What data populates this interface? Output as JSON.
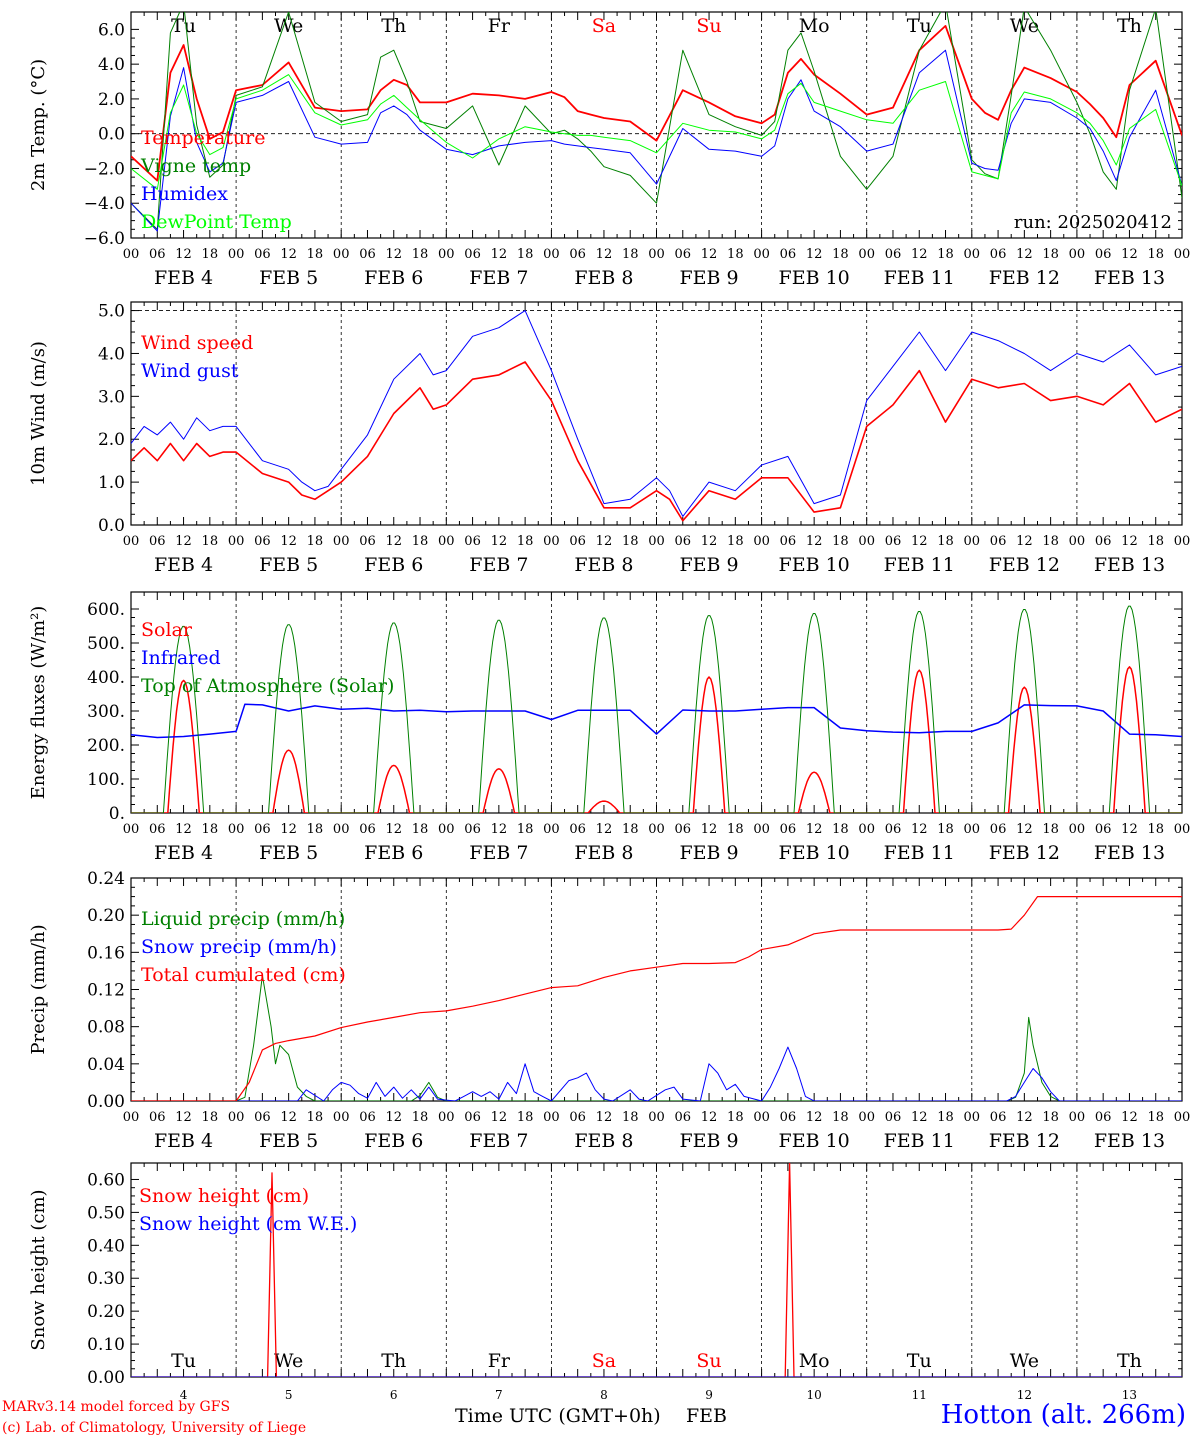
{
  "location": "Hotton (alt. 266m)",
  "credit": [
    "MARv3.14 model forced by GFS",
    "(c) Lab. of Climatology, University of Liege"
  ],
  "x_axis_title": "Time UTC (GMT+0h)",
  "month_label": "FEB",
  "run_label": "run: 2025020412",
  "days": [
    {
      "label": "FEB  4",
      "abbr": "Tu",
      "num": "4",
      "weekend": false
    },
    {
      "label": "FEB  5",
      "abbr": "We",
      "num": "5",
      "weekend": false
    },
    {
      "label": "FEB  6",
      "abbr": "Th",
      "num": "6",
      "weekend": false
    },
    {
      "label": "FEB  7",
      "abbr": "Fr",
      "num": "7",
      "weekend": false
    },
    {
      "label": "FEB  8",
      "abbr": "Sa",
      "num": "8",
      "weekend": true
    },
    {
      "label": "FEB  9",
      "abbr": "Su",
      "num": "9",
      "weekend": true
    },
    {
      "label": "FEB 10",
      "abbr": "Mo",
      "num": "10",
      "weekend": false
    },
    {
      "label": "FEB 11",
      "abbr": "Tu",
      "num": "11",
      "weekend": false
    },
    {
      "label": "FEB 12",
      "abbr": "We",
      "num": "12",
      "weekend": false
    },
    {
      "label": "FEB 13",
      "abbr": "Th",
      "num": "13",
      "weekend": false
    }
  ],
  "hour_ticks": [
    "00",
    "06",
    "12",
    "18"
  ],
  "colors": {
    "red": "#ff0000",
    "blue": "#0000ff",
    "green": "#008000",
    "lightgreen": "#00ff00",
    "weekend": "#ff0000"
  },
  "chart_data": [
    {
      "type": "line",
      "ylabel": "2m Temp. (°C)",
      "ylim": [
        -6,
        7
      ],
      "yticks": [
        -6,
        -4,
        -2,
        0,
        2,
        4,
        6
      ],
      "tick_labels": [
        "−6.0",
        "−4.0",
        "−2.0",
        "0.0",
        "2.0",
        "4.0",
        "6.0"
      ],
      "dashed_y": [
        0
      ],
      "x_hours": [
        0,
        6,
        9,
        12,
        15,
        18,
        21,
        24,
        30,
        36,
        42,
        48,
        54,
        57,
        60,
        63,
        66,
        72,
        78,
        84,
        90,
        96,
        99,
        102,
        105,
        108,
        114,
        120,
        126,
        132,
        138,
        144,
        147,
        150,
        153,
        156,
        162,
        168,
        174,
        180,
        186,
        192,
        195,
        198,
        201,
        204,
        210,
        216,
        219,
        222,
        225,
        228,
        234,
        240
      ],
      "series": [
        {
          "name": "Temperature",
          "color": "#ff0000",
          "width": 1.8,
          "values": [
            -1.3,
            -2.7,
            3.5,
            5.1,
            2.0,
            -0.3,
            0.1,
            2.5,
            2.8,
            4.1,
            1.5,
            1.3,
            1.4,
            2.5,
            3.1,
            2.8,
            1.8,
            1.8,
            2.3,
            2.2,
            2.0,
            2.4,
            2.1,
            1.3,
            1.1,
            0.9,
            0.7,
            -0.4,
            2.5,
            1.8,
            1.0,
            0.6,
            1.1,
            3.5,
            4.3,
            3.4,
            2.3,
            1.1,
            1.5,
            4.8,
            6.2,
            2.0,
            1.2,
            0.8,
            2.5,
            3.8,
            3.2,
            2.4,
            1.7,
            0.9,
            -0.2,
            2.8,
            4.2,
            -0.1
          ]
        },
        {
          "name": "Vigne temp",
          "color": "#008000",
          "width": 1.0,
          "values": [
            -4.0,
            -5.5,
            5.8,
            7.5,
            0.5,
            -2.5,
            -1.8,
            2.2,
            2.7,
            7.0,
            1.8,
            0.7,
            1.1,
            4.4,
            4.8,
            3.0,
            0.7,
            0.3,
            1.6,
            -1.8,
            1.6,
            0.0,
            0.2,
            -0.3,
            -1.0,
            -1.9,
            -2.4,
            -4.0,
            4.8,
            1.1,
            0.4,
            -0.1,
            0.7,
            4.8,
            5.8,
            3.6,
            -1.3,
            -3.2,
            -1.3,
            4.8,
            7.5,
            -1.5,
            -2.3,
            -2.6,
            2.2,
            7.3,
            4.8,
            1.8,
            0.0,
            -2.2,
            -3.2,
            2.5,
            7.2,
            -3.7
          ]
        },
        {
          "name": "Humidex",
          "color": "#0000ff",
          "width": 1.0,
          "values": [
            -4.0,
            -5.6,
            1.0,
            3.8,
            -0.5,
            -2.2,
            -1.7,
            1.8,
            2.2,
            3.0,
            -0.2,
            -0.6,
            -0.5,
            1.2,
            1.6,
            1.1,
            0.2,
            -0.9,
            -1.2,
            -0.7,
            -0.5,
            -0.4,
            -0.6,
            -0.7,
            -0.8,
            -0.9,
            -1.1,
            -2.9,
            0.3,
            -0.9,
            -1.0,
            -1.3,
            -0.7,
            2.0,
            3.1,
            1.3,
            0.4,
            -1.0,
            -0.6,
            3.5,
            4.8,
            -1.7,
            -2.0,
            -2.1,
            0.6,
            2.0,
            1.8,
            0.9,
            0.3,
            -1.0,
            -2.7,
            -0.2,
            2.5,
            -3.0
          ]
        },
        {
          "name": "DewPoint Temp",
          "color": "#00ff00",
          "width": 1.0,
          "values": [
            -2.0,
            -3.2,
            1.2,
            2.8,
            0.0,
            -1.2,
            -0.8,
            2.0,
            2.5,
            3.4,
            1.2,
            0.5,
            0.8,
            1.7,
            2.2,
            1.5,
            0.8,
            -0.5,
            -1.4,
            -0.3,
            0.4,
            0.1,
            0.0,
            -0.1,
            -0.1,
            -0.2,
            -0.4,
            -1.1,
            0.6,
            0.2,
            0.1,
            -0.3,
            0.2,
            2.3,
            2.9,
            1.8,
            1.3,
            0.8,
            0.6,
            2.5,
            3.0,
            -2.2,
            -2.4,
            -2.6,
            1.2,
            2.4,
            2.0,
            1.2,
            0.6,
            -0.4,
            -1.8,
            0.3,
            1.4,
            -3.0
          ]
        }
      ]
    },
    {
      "type": "line",
      "ylabel": "10m Wind (m/s)",
      "ylim": [
        0,
        5.2
      ],
      "yticks": [
        0,
        1,
        2,
        3,
        4,
        5
      ],
      "tick_labels": [
        "0.0",
        "1.0",
        "2.0",
        "3.0",
        "4.0",
        "5.0"
      ],
      "dashed_y": [
        5
      ],
      "x_hours": [
        0,
        3,
        6,
        9,
        12,
        15,
        18,
        21,
        24,
        30,
        36,
        39,
        42,
        45,
        48,
        54,
        60,
        66,
        69,
        72,
        78,
        84,
        90,
        96,
        102,
        108,
        114,
        120,
        123,
        126,
        132,
        138,
        144,
        150,
        156,
        162,
        168,
        174,
        180,
        186,
        192,
        198,
        204,
        210,
        216,
        222,
        228,
        234,
        240
      ],
      "series": [
        {
          "name": "Wind speed",
          "color": "#ff0000",
          "width": 1.6,
          "values": [
            1.5,
            1.8,
            1.5,
            1.9,
            1.5,
            1.9,
            1.6,
            1.7,
            1.7,
            1.2,
            1.0,
            0.7,
            0.6,
            0.8,
            1.0,
            1.6,
            2.6,
            3.2,
            2.7,
            2.8,
            3.4,
            3.5,
            3.8,
            2.9,
            1.5,
            0.4,
            0.4,
            0.8,
            0.6,
            0.1,
            0.8,
            0.6,
            1.1,
            1.1,
            0.3,
            0.4,
            2.3,
            2.8,
            3.6,
            2.4,
            3.4,
            3.2,
            3.3,
            2.9,
            3.0,
            2.8,
            3.3,
            2.4,
            2.7
          ]
        },
        {
          "name": "Wind gust",
          "color": "#0000ff",
          "width": 1.0,
          "values": [
            1.9,
            2.3,
            2.1,
            2.4,
            2.0,
            2.5,
            2.2,
            2.3,
            2.3,
            1.5,
            1.3,
            1.0,
            0.8,
            0.9,
            1.3,
            2.1,
            3.4,
            4.0,
            3.5,
            3.6,
            4.4,
            4.6,
            5.0,
            3.6,
            2.0,
            0.5,
            0.6,
            1.1,
            0.8,
            0.2,
            1.0,
            0.8,
            1.4,
            1.6,
            0.5,
            0.7,
            2.9,
            3.7,
            4.5,
            3.6,
            4.5,
            4.3,
            4.0,
            3.6,
            4.0,
            3.8,
            4.2,
            3.5,
            3.7
          ]
        }
      ]
    },
    {
      "type": "line",
      "ylabel": "Energy fluxes (W/m²)",
      "ylim": [
        0,
        650
      ],
      "yticks": [
        0,
        100,
        200,
        300,
        400,
        500,
        600
      ],
      "tick_labels": [
        "0.",
        "100.",
        "200.",
        "300.",
        "400.",
        "500.",
        "600."
      ],
      "dashed_y": [],
      "series": [
        {
          "name": "Solar",
          "color": "#ff0000",
          "width": 1.5,
          "peaks": [
            390,
            185,
            140,
            130,
            35,
            400,
            120,
            420,
            370,
            430
          ]
        },
        {
          "name": "Infrared",
          "color": "#0000ff",
          "width": 1.5,
          "x_hours": [
            0,
            6,
            12,
            18,
            24,
            26,
            30,
            36,
            42,
            48,
            54,
            60,
            66,
            72,
            78,
            84,
            90,
            96,
            102,
            108,
            114,
            120,
            126,
            132,
            138,
            144,
            150,
            156,
            162,
            168,
            174,
            180,
            186,
            192,
            198,
            204,
            210,
            216,
            222,
            228,
            234,
            240
          ],
          "values": [
            230,
            222,
            225,
            232,
            240,
            320,
            318,
            300,
            315,
            305,
            308,
            300,
            302,
            298,
            300,
            300,
            300,
            275,
            302,
            302,
            302,
            232,
            303,
            300,
            300,
            305,
            310,
            310,
            250,
            242,
            238,
            236,
            240,
            240,
            265,
            318,
            316,
            315,
            300,
            232,
            230,
            225
          ]
        },
        {
          "name": "Top of Atmosphere (Solar)",
          "color": "#008000",
          "width": 1.0,
          "peaks": [
            550,
            555,
            560,
            568,
            575,
            582,
            588,
            594,
            600,
            610
          ]
        }
      ]
    },
    {
      "type": "line",
      "ylabel": "Precip (mm/h)",
      "ylim": [
        0,
        0.24
      ],
      "yticks": [
        0,
        0.04,
        0.08,
        0.12,
        0.16,
        0.2,
        0.24
      ],
      "tick_labels": [
        "0.00",
        "0.04",
        "0.08",
        "0.12",
        "0.16",
        "0.20",
        "0.24"
      ],
      "dashed_y": [],
      "series": [
        {
          "name": "Liquid precip (mm/h)",
          "color": "#008000",
          "width": 1.0,
          "x_hours": [
            0,
            24,
            26,
            28,
            30,
            32,
            33,
            34,
            36,
            38,
            40,
            42,
            60,
            64,
            66,
            68,
            70,
            72,
            200,
            202,
            204,
            205,
            206,
            208,
            210,
            212,
            240
          ],
          "values": [
            0,
            0,
            0.004,
            0.06,
            0.135,
            0.08,
            0.04,
            0.06,
            0.05,
            0.015,
            0.005,
            0,
            0,
            0,
            0.006,
            0.02,
            0.004,
            0,
            0,
            0.004,
            0.03,
            0.09,
            0.06,
            0.02,
            0.005,
            0,
            0
          ]
        },
        {
          "name": "Snow precip (mm/h)",
          "color": "#0000ff",
          "width": 1.0,
          "x_hours": [
            0,
            38,
            40,
            44,
            46,
            48,
            50,
            52,
            54,
            56,
            58,
            60,
            62,
            64,
            66,
            68,
            70,
            72,
            74,
            76,
            78,
            80,
            82,
            84,
            86,
            88,
            90,
            92,
            94,
            96,
            100,
            102,
            104,
            106,
            108,
            110,
            114,
            116,
            118,
            122,
            124,
            126,
            130,
            132,
            134,
            136,
            138,
            140,
            144,
            146,
            148,
            150,
            152,
            154,
            156,
            158,
            160,
            162,
            164,
            200,
            202,
            204,
            206,
            208,
            210,
            212,
            240
          ],
          "values": [
            0,
            0,
            0.012,
            0,
            0.012,
            0.02,
            0.017,
            0.008,
            0.003,
            0.02,
            0.005,
            0.015,
            0.003,
            0.012,
            0.002,
            0.015,
            0.002,
            0.001,
            0,
            0.005,
            0.01,
            0.005,
            0.01,
            0.002,
            0.02,
            0.008,
            0.04,
            0.01,
            0.005,
            0,
            0.022,
            0.025,
            0.03,
            0.012,
            0.002,
            0,
            0.012,
            0.002,
            0,
            0.012,
            0.015,
            0.002,
            0,
            0.04,
            0.03,
            0.012,
            0.018,
            0.005,
            0,
            0.015,
            0.035,
            0.058,
            0.035,
            0.005,
            0,
            0,
            0,
            0,
            0,
            0,
            0.005,
            0.02,
            0.035,
            0.025,
            0.01,
            0,
            0
          ]
        },
        {
          "name": "Total cumulated (cm)",
          "color": "#ff0000",
          "width": 1.2,
          "x_hours": [
            0,
            24,
            27,
            30,
            33,
            36,
            42,
            48,
            54,
            60,
            66,
            72,
            78,
            84,
            90,
            96,
            99,
            102,
            108,
            114,
            120,
            126,
            132,
            138,
            141,
            144,
            150,
            156,
            162,
            168,
            174,
            180,
            186,
            192,
            198,
            201,
            204,
            207,
            210,
            216,
            222,
            228,
            234,
            240
          ],
          "values": [
            0,
            0,
            0.02,
            0.055,
            0.062,
            0.065,
            0.07,
            0.079,
            0.085,
            0.09,
            0.095,
            0.097,
            0.102,
            0.108,
            0.115,
            0.122,
            0.123,
            0.124,
            0.133,
            0.14,
            0.144,
            0.148,
            0.148,
            0.149,
            0.155,
            0.163,
            0.168,
            0.18,
            0.184,
            0.184,
            0.184,
            0.184,
            0.184,
            0.184,
            0.184,
            0.185,
            0.2,
            0.22,
            0.22,
            0.22,
            0.22,
            0.22,
            0.22,
            0.22
          ]
        }
      ]
    },
    {
      "type": "line",
      "ylabel": "Snow height (cm)",
      "ylim": [
        0,
        0.65
      ],
      "yticks": [
        0,
        0.1,
        0.2,
        0.3,
        0.4,
        0.5,
        0.6
      ],
      "tick_labels": [
        "0.00",
        "0.10",
        "0.20",
        "0.30",
        "0.40",
        "0.50",
        "0.60"
      ],
      "dashed_y": [],
      "series": [
        {
          "name": "Snow height (cm)",
          "color": "#ff0000",
          "width": 1.3,
          "x_hours": [
            0,
            31.2,
            32.2,
            33.2,
            149.4,
            150.4,
            151.4,
            240
          ],
          "values": [
            0,
            0,
            0.62,
            0,
            0,
            0.65,
            0,
            0
          ]
        },
        {
          "name": "Snow height (cm W.E.)",
          "color": "#0000ff",
          "width": 1.0,
          "x_hours": [
            0,
            240
          ],
          "values": [
            0,
            0
          ]
        }
      ]
    }
  ]
}
